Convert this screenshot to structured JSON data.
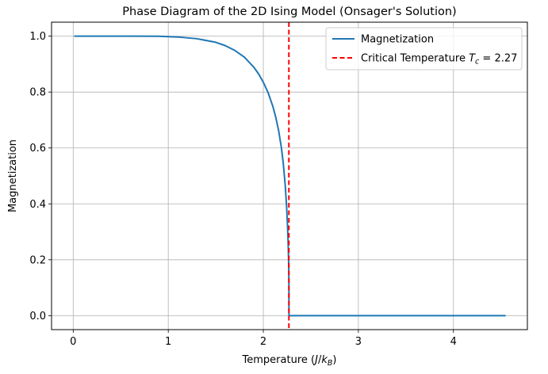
{
  "chart_data": {
    "type": "line",
    "title": "Phase Diagram of the 2D Ising Model (Onsager's Solution)",
    "xlabel": "Temperature (J/k_B)",
    "ylabel": "Magnetization",
    "xlim": [
      -0.228,
      4.778
    ],
    "ylim": [
      -0.05,
      1.05
    ],
    "xticks": [
      0,
      1,
      2,
      3,
      4
    ],
    "yticks": [
      0.0,
      0.2,
      0.4,
      0.6,
      0.8,
      1.0
    ],
    "xtick_labels": [
      "0",
      "1",
      "2",
      "3",
      "4"
    ],
    "ytick_labels": [
      "0.0",
      "0.2",
      "0.4",
      "0.6",
      "0.8",
      "1.0"
    ],
    "grid": true,
    "legend_position": "upper-right",
    "series": [
      {
        "name": "Magnetization",
        "color": "#1f77b4",
        "style": "solid",
        "x": [
          0.01,
          0.3,
          0.6,
          0.9,
          1.1,
          1.3,
          1.5,
          1.6,
          1.7,
          1.8,
          1.9,
          1.95,
          2.0,
          2.05,
          2.1,
          2.13,
          2.16,
          2.19,
          2.21,
          2.23,
          2.245,
          2.255,
          2.262,
          2.267,
          2.2692,
          2.27,
          2.5,
          3.0,
          3.5,
          4.0,
          4.55
        ],
        "y": [
          1.0,
          1.0,
          1.0,
          0.9995,
          0.997,
          0.991,
          0.978,
          0.966,
          0.949,
          0.925,
          0.889,
          0.865,
          0.835,
          0.798,
          0.749,
          0.711,
          0.664,
          0.601,
          0.544,
          0.468,
          0.39,
          0.316,
          0.25,
          0.18,
          0.12,
          0.0,
          0.0,
          0.0,
          0.0,
          0.0,
          0.0
        ]
      },
      {
        "name": "Critical Temperature T_c = 2.27",
        "color": "#ff0000",
        "style": "dashed",
        "vline_x": 2.269
      }
    ]
  }
}
